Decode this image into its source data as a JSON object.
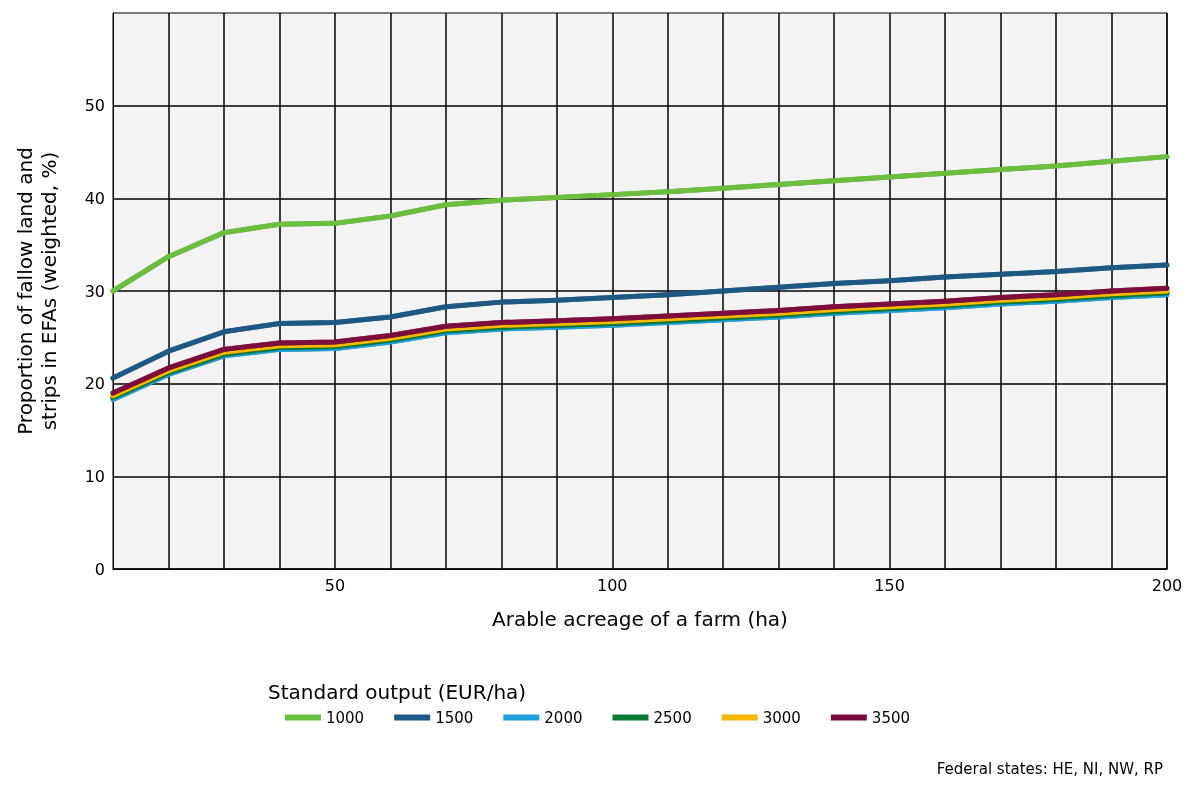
{
  "chart_data": {
    "type": "line",
    "xlabel": "Arable acreage of a farm (ha)",
    "ylabel": "Proportion of fallow land and\nstrips in EFAs (weighted, %)",
    "legend_title": "Standard output (EUR/ha)",
    "legend": "bottom",
    "grid": true,
    "marker": "none",
    "line_style": "solid",
    "x": [
      10,
      20,
      30,
      40,
      50,
      60,
      70,
      80,
      90,
      100,
      110,
      120,
      130,
      140,
      150,
      160,
      170,
      180,
      190,
      200
    ],
    "xlim": [
      10,
      200
    ],
    "xticks": [
      {
        "value": 20,
        "label": null
      },
      {
        "value": 30,
        "label": null
      },
      {
        "value": 40,
        "label": null
      },
      50,
      {
        "value": 60,
        "label": null
      },
      {
        "value": 70,
        "label": null
      },
      {
        "value": 80,
        "label": null
      },
      {
        "value": 90,
        "label": null
      },
      100,
      {
        "value": 110,
        "label": null
      },
      {
        "value": 120,
        "label": null
      },
      {
        "value": 130,
        "label": null
      },
      {
        "value": 140,
        "label": null
      },
      150,
      {
        "value": 160,
        "label": null
      },
      {
        "value": 170,
        "label": null
      },
      {
        "value": 180,
        "label": null
      },
      {
        "value": 190,
        "label": null
      },
      200
    ],
    "ylim": [
      0,
      60
    ],
    "yticks": [
      0,
      10,
      20,
      30,
      40,
      50
    ],
    "series": [
      {
        "name": "1000",
        "color": "#6abf3c",
        "values": [
          30.0,
          33.7,
          36.3,
          37.2,
          37.3,
          38.1,
          39.3,
          39.8,
          40.1,
          40.4,
          40.7,
          41.1,
          41.5,
          41.9,
          42.3,
          42.7,
          43.1,
          43.5,
          44.0,
          44.5
        ]
      },
      {
        "name": "1500",
        "color": "#1c5a85",
        "values": [
          20.6,
          23.5,
          25.6,
          26.5,
          26.6,
          27.2,
          28.3,
          28.8,
          29.0,
          29.3,
          29.6,
          30.0,
          30.4,
          30.8,
          31.1,
          31.5,
          31.8,
          32.1,
          32.5,
          32.8
        ]
      },
      {
        "name": "2000",
        "color": "#1ea0dc",
        "values": [
          18.3,
          21.0,
          23.0,
          23.7,
          23.8,
          24.5,
          25.5,
          25.9,
          26.1,
          26.3,
          26.6,
          26.9,
          27.2,
          27.6,
          27.9,
          28.2,
          28.6,
          28.9,
          29.3,
          29.6
        ]
      },
      {
        "name": "2500",
        "color": "#0a7a32",
        "values": [
          18.5,
          21.2,
          23.2,
          23.9,
          24.0,
          24.7,
          25.7,
          26.1,
          26.3,
          26.5,
          26.8,
          27.1,
          27.4,
          27.8,
          28.1,
          28.4,
          28.8,
          29.1,
          29.5,
          29.8
        ]
      },
      {
        "name": "3000",
        "color": "#f5b800",
        "values": [
          18.7,
          21.4,
          23.4,
          24.1,
          24.2,
          24.9,
          25.9,
          26.3,
          26.5,
          26.7,
          27.0,
          27.3,
          27.6,
          28.0,
          28.3,
          28.6,
          29.0,
          29.3,
          29.7,
          30.0
        ]
      },
      {
        "name": "3500",
        "color": "#7d0a3c",
        "values": [
          19.0,
          21.7,
          23.7,
          24.4,
          24.5,
          25.2,
          26.2,
          26.6,
          26.8,
          27.0,
          27.3,
          27.6,
          27.9,
          28.3,
          28.6,
          28.9,
          29.3,
          29.6,
          30.0,
          30.3
        ]
      }
    ],
    "annotations": [
      "Federal states: HE, NI, NW, RP"
    ]
  }
}
